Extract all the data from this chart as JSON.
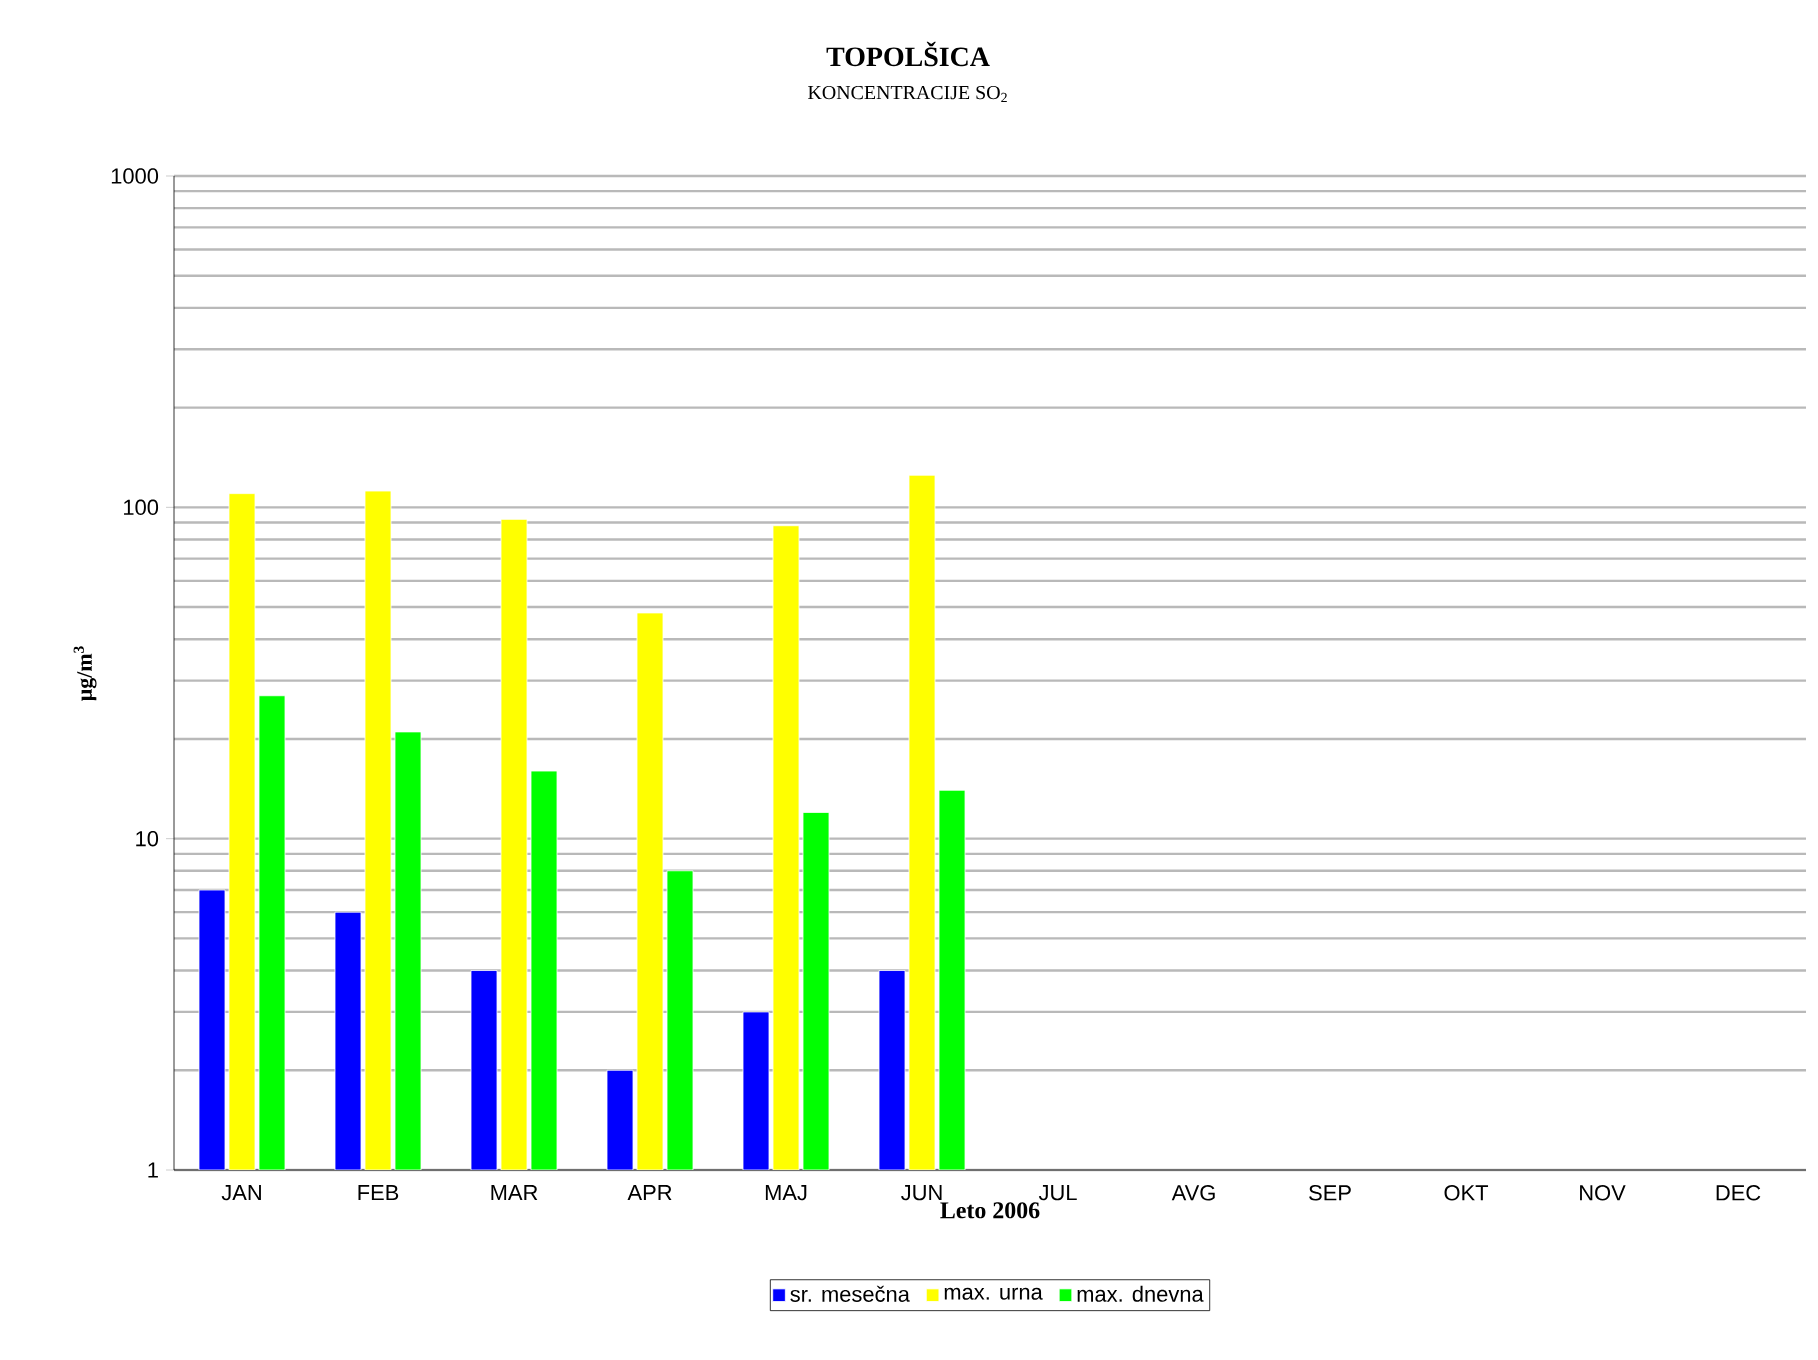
{
  "chart_data": {
    "type": "bar",
    "title": "TOPOLŠICA",
    "subtitle": "KONCENTRACIJE SO$_{2}$",
    "xlabel": "Leto 2006",
    "ylabel": "μg/m$^{3}$",
    "categories": [
      "JAN",
      "FEB",
      "MAR",
      "APR",
      "MAJ",
      "JUN",
      "JUL",
      "AVG",
      "SEP",
      "OKT",
      "NOV",
      "DEC"
    ],
    "series": [
      {
        "name": "sr. mesečna",
        "color": "#0000ff",
        "values": [
          7,
          6,
          4,
          2,
          3,
          4,
          null,
          null,
          null,
          null,
          null,
          null
        ]
      },
      {
        "name": "max. urna",
        "color": "#ffff00",
        "values": [
          110,
          112,
          92,
          48,
          88,
          125,
          null,
          null,
          null,
          null,
          null,
          null
        ]
      },
      {
        "name": "max. dnevna",
        "color": "#00ff00",
        "values": [
          27,
          21,
          16,
          8,
          12,
          14,
          null,
          null,
          null,
          null,
          null,
          null
        ]
      }
    ],
    "log": "y",
    "ylim": [
      1,
      1000
    ],
    "yticks": [
      1,
      10,
      100,
      1000
    ],
    "grid": "y",
    "legend": "bottom"
  }
}
